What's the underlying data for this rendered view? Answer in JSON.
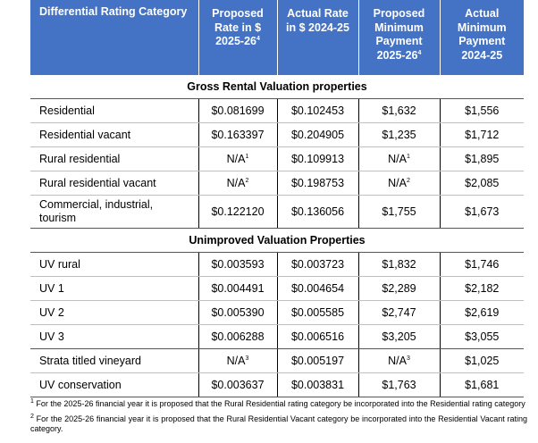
{
  "header": {
    "category": "Differential Rating Category",
    "proposed_rate": "Proposed Rate in $ 2025-26",
    "proposed_rate_sup": "4",
    "actual_rate": "Actual Rate in $ 2024-25",
    "proposed_min": "Proposed Minimum Payment 2025-26",
    "proposed_min_sup": "4",
    "actual_min": "Actual Minimum Payment 2024-25"
  },
  "sections": {
    "grv": "Gross Rental Valuation properties",
    "uv": "Unimproved Valuation Properties"
  },
  "rows": [
    {
      "category": "Residential",
      "proposed_rate": "$0.081699",
      "proposed_rate_sup": "",
      "actual_rate": "$0.102453",
      "proposed_min": "$1,632",
      "proposed_min_sup": "",
      "actual_min": "$1,556"
    },
    {
      "category": "Residential vacant",
      "proposed_rate": "$0.163397",
      "proposed_rate_sup": "",
      "actual_rate": "$0.204905",
      "proposed_min": "$1,235",
      "proposed_min_sup": "",
      "actual_min": "$1,712"
    },
    {
      "category": "Rural residential",
      "proposed_rate": "N/A",
      "proposed_rate_sup": "1",
      "actual_rate": "$0.109913",
      "proposed_min": "N/A",
      "proposed_min_sup": "1",
      "actual_min": "$1,895"
    },
    {
      "category": "Rural residential vacant",
      "proposed_rate": "N/A",
      "proposed_rate_sup": "2",
      "actual_rate": "$0.198753",
      "proposed_min": "N/A",
      "proposed_min_sup": "2",
      "actual_min": "$2,085"
    },
    {
      "category": "Commercial, industrial, tourism",
      "proposed_rate": "$0.122120",
      "proposed_rate_sup": "",
      "actual_rate": "$0.136056",
      "proposed_min": "$1,755",
      "proposed_min_sup": "",
      "actual_min": "$1,673"
    },
    {
      "category": "UV rural",
      "proposed_rate": "$0.003593",
      "proposed_rate_sup": "",
      "actual_rate": "$0.003723",
      "proposed_min": "$1,832",
      "proposed_min_sup": "",
      "actual_min": "$1,746"
    },
    {
      "category": "UV 1",
      "proposed_rate": "$0.004491",
      "proposed_rate_sup": "",
      "actual_rate": "$0.004654",
      "proposed_min": "$2,289",
      "proposed_min_sup": "",
      "actual_min": "$2,182"
    },
    {
      "category": "UV 2",
      "proposed_rate": "$0.005390",
      "proposed_rate_sup": "",
      "actual_rate": "$0.005585",
      "proposed_min": "$2,747",
      "proposed_min_sup": "",
      "actual_min": "$2,619"
    },
    {
      "category": "UV 3",
      "proposed_rate": "$0.006288",
      "proposed_rate_sup": "",
      "actual_rate": "$0.006516",
      "proposed_min": "$3,205",
      "proposed_min_sup": "",
      "actual_min": "$3,055"
    },
    {
      "category": "Strata titled vineyard",
      "proposed_rate": "N/A",
      "proposed_rate_sup": "3",
      "actual_rate": "$0.005197",
      "proposed_min": "N/A",
      "proposed_min_sup": "3",
      "actual_min": "$1,025"
    },
    {
      "category": "UV conservation",
      "proposed_rate": "$0.003637",
      "proposed_rate_sup": "",
      "actual_rate": "$0.003831",
      "proposed_min": "$1,763",
      "proposed_min_sup": "",
      "actual_min": "$1,681"
    }
  ],
  "footnotes": [
    {
      "mark": "1",
      "text": " For the 2025-26 financial year it is proposed that the Rural Residential rating category be incorporated into the Residential rating category"
    },
    {
      "mark": "2",
      "text": " For the 2025-26 financial year it is proposed that the Rural Residential Vacant category be incorporated into the Residential Vacant rating category."
    }
  ]
}
